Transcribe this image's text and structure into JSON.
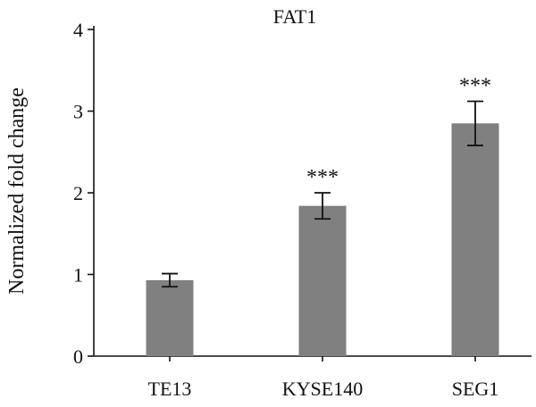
{
  "chart_data": {
    "type": "bar",
    "title": "FAT1",
    "xlabel": "",
    "ylabel": "Normalized fold change",
    "ylim": [
      0,
      4
    ],
    "yticks": [
      0,
      1,
      2,
      3,
      4
    ],
    "categories": [
      "TE13",
      "KYSE140",
      "SEG1"
    ],
    "values": [
      0.93,
      1.84,
      2.85
    ],
    "errors": [
      0.08,
      0.16,
      0.27
    ],
    "significance": [
      "",
      "***",
      "***"
    ],
    "bar_color": "#808080",
    "grid": false,
    "legend": "none"
  }
}
